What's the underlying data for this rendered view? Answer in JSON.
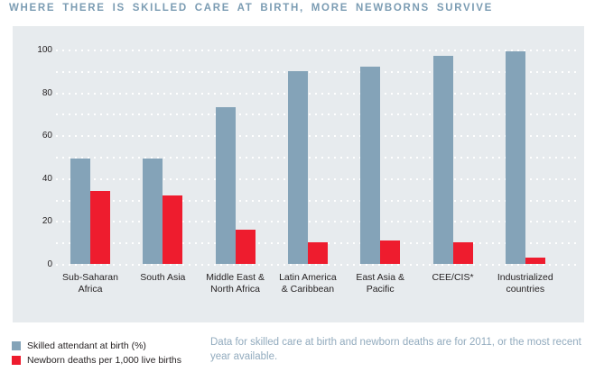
{
  "title": "WHERE THERE IS SKILLED CARE AT BIRTH, MORE NEWBORNS SURVIVE",
  "note": "Data for skilled care at birth and newborn deaths are for 2011, or the most recent year available.",
  "colors": {
    "title_text": "#7b9cb3",
    "panel_background": "#e7ebee",
    "bar_blue": "#84a3b8",
    "bar_red": "#ee1c2e",
    "axis_text": "#231f20",
    "note_text": "#92abbe",
    "grid_dots": "#ffffff"
  },
  "legend": {
    "items": [
      {
        "label": "Skilled attendant at birth (%)",
        "color": "#84a3b8"
      },
      {
        "label": "Newborn deaths per 1,000 live births",
        "color": "#ee1c2e"
      }
    ]
  },
  "chart_data": {
    "type": "bar",
    "title": "WHERE THERE IS SKILLED CARE AT BIRTH, MORE NEWBORNS SURVIVE",
    "categories": [
      "Sub-Saharan Africa",
      "South Asia",
      "Middle East & North Africa",
      "Latin America & Caribbean",
      "East Asia & Pacific",
      "CEE/CIS*",
      "Industrialized countries"
    ],
    "category_lines": [
      [
        "Sub-Saharan",
        "Africa"
      ],
      [
        "South Asia"
      ],
      [
        "Middle East &",
        "North Africa"
      ],
      [
        "Latin America",
        "& Caribbean"
      ],
      [
        "East Asia &",
        "Pacific"
      ],
      [
        "CEE/CIS*"
      ],
      [
        "Industrialized",
        "countries"
      ]
    ],
    "series": [
      {
        "name": "Skilled attendant at birth (%)",
        "color": "#84a3b8",
        "values": [
          49,
          49,
          73,
          90,
          92,
          97,
          99
        ]
      },
      {
        "name": "Newborn deaths per 1,000 live births",
        "color": "#ee1c2e",
        "values": [
          34,
          32,
          16,
          10,
          11,
          10,
          3
        ]
      }
    ],
    "xlabel": "",
    "ylabel": "",
    "ylim": [
      0,
      100
    ],
    "ytick_labels": [
      0,
      20,
      40,
      60,
      80,
      100
    ],
    "gridline_step": 10,
    "grid": "dotted-white-horizontal",
    "legend_position": "bottom-left"
  }
}
